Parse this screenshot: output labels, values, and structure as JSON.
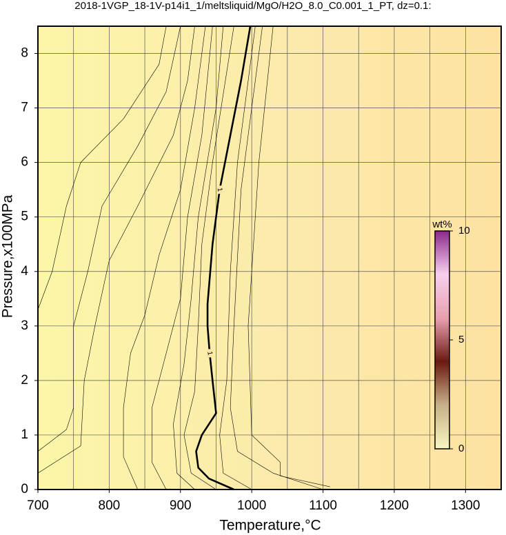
{
  "chart_data": {
    "type": "contour",
    "title": "2018-1VGP_18-1V-p14i1_1/meltsliquid/MgO/H2O_8.0_C0.001_1_PT, dz=0.1:",
    "x_label": "Temperature,°C",
    "y_label": "Pressure,x100MPa",
    "xlim": [
      700,
      1350
    ],
    "ylim": [
      0,
      8.5
    ],
    "xticks": [
      700,
      800,
      900,
      1000,
      1100,
      1200,
      1300
    ],
    "yticks": [
      0,
      1,
      2,
      3,
      4,
      5,
      6,
      7,
      8
    ],
    "grid": true,
    "background_colors": [
      "#fbf6a8",
      "#fcebab",
      "#fde2a2"
    ],
    "contours": [
      {
        "x": [
          700,
          720,
          740,
          760,
          820,
          870,
          880
        ],
        "y": [
          3.3,
          4.0,
          5.2,
          6.0,
          6.8,
          7.8,
          8.5
        ]
      },
      {
        "x": [
          700,
          740,
          750,
          750,
          770,
          790,
          840,
          880,
          900
        ],
        "y": [
          0.7,
          1.1,
          1.5,
          3.0,
          4.0,
          5.2,
          6.3,
          7.3,
          8.5
        ]
      },
      {
        "x": [
          700,
          760,
          765,
          780,
          800,
          840,
          890,
          910,
          920
        ],
        "y": [
          0.3,
          0.8,
          2.0,
          3.0,
          4.2,
          5.2,
          6.5,
          7.5,
          8.5
        ]
      },
      {
        "x": [
          840,
          820,
          820,
          830,
          850,
          870,
          900,
          920,
          935
        ],
        "y": [
          0,
          0.6,
          1.5,
          2.5,
          3.2,
          4.3,
          5.5,
          7.0,
          8.5
        ]
      },
      {
        "x": [
          880,
          860,
          860,
          880,
          900,
          910,
          930,
          945
        ],
        "y": [
          0,
          0.5,
          1.5,
          2.5,
          3.5,
          5.0,
          6.5,
          8.5
        ]
      },
      {
        "x": [
          920,
          895,
          890,
          905,
          915,
          925,
          950,
          960
        ],
        "y": [
          0,
          0.3,
          1.2,
          2.3,
          3.5,
          5.0,
          7.0,
          8.5
        ]
      },
      {
        "x": [
          950,
          915,
          905,
          920,
          925,
          930,
          945,
          975
        ],
        "y": [
          0,
          0.3,
          1.0,
          1.8,
          3.0,
          4.5,
          6.0,
          8.5
        ]
      },
      {
        "x": [
          1000,
          960,
          955,
          965,
          970,
          980,
          1005
        ],
        "y": [
          0,
          0.3,
          1.0,
          2.0,
          4.0,
          6.0,
          8.5
        ]
      },
      {
        "x": [
          1100,
          1030,
          980,
          970,
          975,
          985,
          1015
        ],
        "y": [
          0,
          0.3,
          0.7,
          1.5,
          3.0,
          5.5,
          8.5
        ]
      },
      {
        "x": [
          1110,
          1040,
          1040,
          1000,
          995,
          1010,
          1030
        ],
        "y": [
          0.05,
          0.25,
          0.5,
          1.0,
          3.0,
          6.0,
          8.5
        ]
      },
      {
        "level": 1,
        "emphasis": true,
        "x": [
          975,
          940,
          925,
          922,
          930,
          950,
          945,
          941,
          938,
          938,
          945,
          955,
          970,
          985,
          998
        ],
        "y": [
          0,
          0.2,
          0.4,
          0.7,
          1.0,
          1.4,
          2.0,
          2.5,
          3.0,
          3.4,
          4.5,
          5.5,
          6.5,
          7.5,
          8.5
        ]
      }
    ],
    "colorbar": {
      "label": "wt%",
      "lim": [
        0,
        10
      ],
      "ticks": [
        0,
        5,
        10
      ],
      "colors": [
        "#f8f8c0",
        "#c8b088",
        "#6a1a10",
        "#e8a0b0",
        "#f8d0f0",
        "#8a2a8a"
      ]
    }
  }
}
